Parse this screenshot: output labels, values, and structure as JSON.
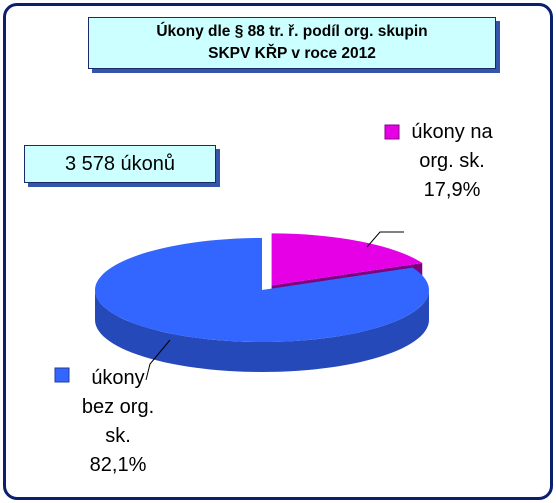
{
  "chart_data": {
    "type": "pie",
    "title": [
      "Úkony dle § 88 tr. ř. podíl org. skupin",
      "SKPV KŘP v roce 2012"
    ],
    "annotation": "3 578 úkonů",
    "categories": [
      "úkony na org. sk.",
      "úkony bez org. sk."
    ],
    "values": [
      17.9,
      82.1
    ],
    "value_labels": [
      "17,9%",
      "82,1%"
    ],
    "colors": [
      "#e600e6",
      "#3366ff"
    ]
  }
}
